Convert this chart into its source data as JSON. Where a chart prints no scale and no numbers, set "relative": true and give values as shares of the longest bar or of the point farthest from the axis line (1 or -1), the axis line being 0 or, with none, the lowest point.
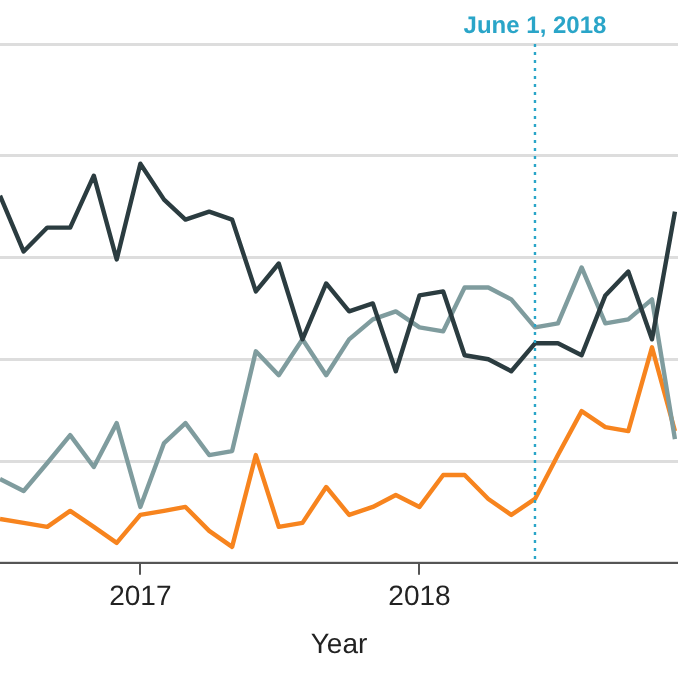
{
  "chart_data": {
    "type": "line",
    "xlabel": "Year",
    "relative": true,
    "grid": "y",
    "legend": false,
    "tick_labels": "x",
    "marker": "none",
    "line_style": "solid",
    "x": [
      "2016-07",
      "2016-08",
      "2016-09",
      "2016-10",
      "2016-11",
      "2016-12",
      "2017-01",
      "2017-02",
      "2017-03",
      "2017-04",
      "2017-05",
      "2017-06",
      "2017-07",
      "2017-08",
      "2017-09",
      "2017-10",
      "2017-11",
      "2017-12",
      "2018-01",
      "2018-02",
      "2018-03",
      "2018-04",
      "2018-05",
      "2018-06",
      "2018-07",
      "2018-08",
      "2018-09",
      "2018-10",
      "2018-11",
      "2018-12"
    ],
    "xlim": [
      "2016-07-01",
      "2018-12-05"
    ],
    "xticks": [
      "2017",
      "2018"
    ],
    "series": [
      {
        "color": "#2b3c40",
        "values": [
          0.92,
          0.78,
          0.84,
          0.84,
          0.97,
          0.76,
          1,
          0.91,
          0.86,
          0.88,
          0.86,
          0.68,
          0.75,
          0.56,
          0.7,
          0.63,
          0.65,
          0.48,
          0.67,
          0.68,
          0.52,
          0.51,
          0.48,
          0.55,
          0.55,
          0.52,
          0.67,
          0.73,
          0.56,
          0.88
        ]
      },
      {
        "color": "#7f9c9e",
        "values": [
          0.21,
          0.18,
          0.25,
          0.32,
          0.24,
          0.35,
          0.14,
          0.3,
          0.35,
          0.27,
          0.28,
          0.53,
          0.47,
          0.56,
          0.47,
          0.56,
          0.61,
          0.63,
          0.59,
          0.58,
          0.69,
          0.69,
          0.66,
          0.59,
          0.6,
          0.74,
          0.6,
          0.61,
          0.66,
          0.31
        ]
      },
      {
        "color": "#f7841e",
        "values": [
          0.11,
          0.1,
          0.09,
          0.13,
          0.09,
          0.05,
          0.12,
          0.13,
          0.14,
          0.08,
          0.04,
          0.27,
          0.09,
          0.1,
          0.19,
          0.12,
          0.14,
          0.17,
          0.14,
          0.22,
          0.22,
          0.16,
          0.12,
          0.16,
          0.27,
          0.38,
          0.34,
          0.33,
          0.54,
          0.33
        ]
      }
    ],
    "ref_lines": [
      {
        "axis": "x",
        "value": "2018-06-01",
        "label": "June 1, 2018",
        "color": "#2aa5c8",
        "line_style": "dotted"
      }
    ]
  }
}
